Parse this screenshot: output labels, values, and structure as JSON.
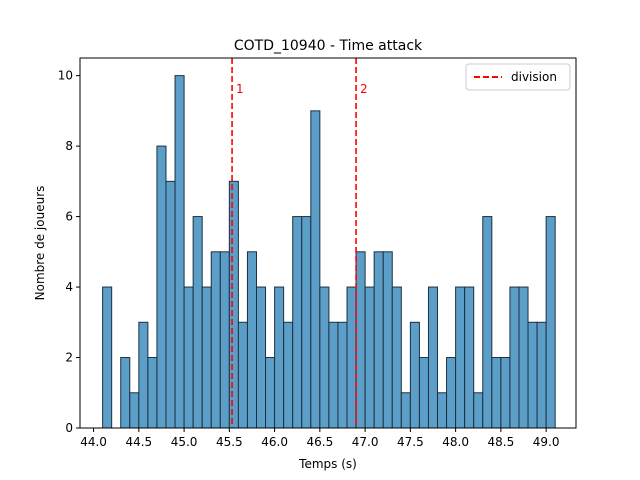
{
  "chart_data": {
    "type": "bar",
    "title": "COTD_10940 - Time attack",
    "xlabel": "Temps (s)",
    "ylabel": "Nombre de joueurs",
    "xlim": [
      43.85,
      49.33
    ],
    "ylim": [
      0,
      10.5
    ],
    "xticks": [
      44.0,
      44.5,
      45.0,
      45.5,
      46.0,
      46.5,
      47.0,
      47.5,
      48.0,
      48.5,
      49.0
    ],
    "xtick_labels": [
      "44.0",
      "44.5",
      "45.0",
      "45.5",
      "46.0",
      "46.5",
      "47.0",
      "47.5",
      "48.0",
      "48.5",
      "49.0"
    ],
    "yticks": [
      0,
      2,
      4,
      6,
      8,
      10
    ],
    "ytick_labels": [
      "0",
      "2",
      "4",
      "6",
      "8",
      "10"
    ],
    "bin_start": 44.1,
    "bin_width": 0.1,
    "values": [
      4,
      0,
      2,
      1,
      3,
      2,
      8,
      7,
      10,
      4,
      6,
      4,
      5,
      5,
      7,
      3,
      5,
      4,
      2,
      4,
      3,
      6,
      6,
      9,
      4,
      3,
      3,
      4,
      5,
      4,
      5,
      5,
      4,
      1,
      3,
      2,
      4,
      1,
      2,
      4,
      4,
      1,
      6,
      2,
      2,
      4,
      4,
      3,
      3,
      6
    ],
    "bar_color": "#5b9fc9",
    "bar_edge_color": "#1f2f3f",
    "division_lines": [
      {
        "x": 45.53,
        "label": "1"
      },
      {
        "x": 46.9,
        "label": "2"
      }
    ],
    "division_color": "#ff0000",
    "legend": {
      "label": "division",
      "position": "top-right"
    },
    "grid": false
  }
}
